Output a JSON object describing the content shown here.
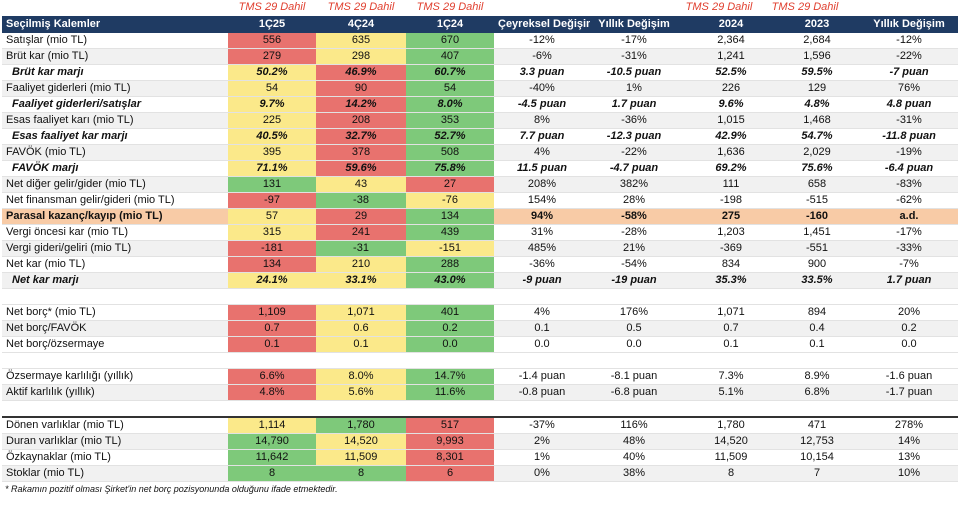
{
  "tms_label": "TMS 29 Dahil",
  "header": [
    "Seçilmiş Kalemler",
    "1Ç25",
    "4Ç24",
    "1Ç24",
    "Çeyreksel Değişim",
    "Yıllık Değişim",
    "",
    "2024",
    "2023",
    "Yıllık Değişim"
  ],
  "colors": {
    "header_bg": "#1f3b63",
    "red": "#e8726e",
    "yellow": "#fbe98a",
    "green": "#7ec97a",
    "highlight": "#f8cba6",
    "tms_text": "#e04030"
  },
  "rows": [
    {
      "label": "Satışlar (mio TL)",
      "v": [
        "556",
        "635",
        "670",
        "-12%",
        "-17%",
        "",
        "2,364",
        "2,684",
        "-12%"
      ],
      "c": [
        "r",
        "y",
        "g"
      ]
    },
    {
      "label": "Brüt kar (mio TL)",
      "v": [
        "279",
        "298",
        "407",
        "-6%",
        "-31%",
        "",
        "1,241",
        "1,596",
        "-22%"
      ],
      "c": [
        "r",
        "y",
        "g"
      ]
    },
    {
      "label": "Brüt kar marjı",
      "v": [
        "50.2%",
        "46.9%",
        "60.7%",
        "3.3 puan",
        "-10.5 puan",
        "",
        "52.5%",
        "59.5%",
        "-7 puan"
      ],
      "c": [
        "y",
        "r",
        "g"
      ],
      "ital": true
    },
    {
      "label": "Faaliyet giderleri (mio TL)",
      "v": [
        "54",
        "90",
        "54",
        "-40%",
        "1%",
        "",
        "226",
        "129",
        "76%"
      ],
      "c": [
        "y",
        "r",
        "g"
      ]
    },
    {
      "label": "Faaliyet giderleri/satışlar",
      "v": [
        "9.7%",
        "14.2%",
        "8.0%",
        "-4.5 puan",
        "1.7 puan",
        "",
        "9.6%",
        "4.8%",
        "4.8 puan"
      ],
      "c": [
        "y",
        "r",
        "g"
      ],
      "ital": true
    },
    {
      "label": "Esas faaliyet karı (mio TL)",
      "v": [
        "225",
        "208",
        "353",
        "8%",
        "-36%",
        "",
        "1,015",
        "1,468",
        "-31%"
      ],
      "c": [
        "y",
        "r",
        "g"
      ]
    },
    {
      "label": "Esas faaliyet kar marjı",
      "v": [
        "40.5%",
        "32.7%",
        "52.7%",
        "7.7 puan",
        "-12.3 puan",
        "",
        "42.9%",
        "54.7%",
        "-11.8 puan"
      ],
      "c": [
        "y",
        "r",
        "g"
      ],
      "ital": true
    },
    {
      "label": "FAVÖK (mio TL)",
      "v": [
        "395",
        "378",
        "508",
        "4%",
        "-22%",
        "",
        "1,636",
        "2,029",
        "-19%"
      ],
      "c": [
        "y",
        "r",
        "g"
      ]
    },
    {
      "label": "FAVÖK marjı",
      "v": [
        "71.1%",
        "59.6%",
        "75.8%",
        "11.5 puan",
        "-4.7 puan",
        "",
        "69.2%",
        "75.6%",
        "-6.4 puan"
      ],
      "c": [
        "y",
        "r",
        "g"
      ],
      "ital": true
    },
    {
      "label": "Net diğer gelir/gider (mio TL)",
      "v": [
        "131",
        "43",
        "27",
        "208%",
        "382%",
        "",
        "111",
        "658",
        "-83%"
      ],
      "c": [
        "g",
        "y",
        "r"
      ]
    },
    {
      "label": "Net finansman gelir/gideri (mio TL)",
      "v": [
        "-97",
        "-38",
        "-76",
        "154%",
        "28%",
        "",
        "-198",
        "-515",
        "-62%"
      ],
      "c": [
        "r",
        "g",
        "y"
      ]
    },
    {
      "label": "Parasal kazanç/kayıp (mio TL)",
      "v": [
        "57",
        "29",
        "134",
        "94%",
        "-58%",
        "",
        "275",
        "-160",
        "a.d."
      ],
      "c": [
        "y",
        "r",
        "g"
      ],
      "hl": true
    },
    {
      "label": "Vergi öncesi kar (mio TL)",
      "v": [
        "315",
        "241",
        "439",
        "31%",
        "-28%",
        "",
        "1,203",
        "1,451",
        "-17%"
      ],
      "c": [
        "y",
        "r",
        "g"
      ]
    },
    {
      "label": "Vergi gideri/geliri (mio TL)",
      "v": [
        "-181",
        "-31",
        "-151",
        "485%",
        "21%",
        "",
        "-369",
        "-551",
        "-33%"
      ],
      "c": [
        "r",
        "g",
        "y"
      ]
    },
    {
      "label": "Net kar (mio TL)",
      "v": [
        "134",
        "210",
        "288",
        "-36%",
        "-54%",
        "",
        "834",
        "900",
        "-7%"
      ],
      "c": [
        "r",
        "y",
        "g"
      ]
    },
    {
      "label": "Net kar marjı",
      "v": [
        "24.1%",
        "33.1%",
        "43.0%",
        "-9 puan",
        "-19 puan",
        "",
        "35.3%",
        "33.5%",
        "1.7 puan"
      ],
      "c": [
        "y",
        "y",
        "g"
      ],
      "ital": true
    }
  ],
  "rows2": [
    {
      "label": "Net borç* (mio TL)",
      "v": [
        "1,109",
        "1,071",
        "401",
        "4%",
        "176%",
        "",
        "1,071",
        "894",
        "20%"
      ],
      "c": [
        "r",
        "y",
        "g"
      ]
    },
    {
      "label": "Net borç/FAVÖK",
      "v": [
        "0.7",
        "0.6",
        "0.2",
        "0.1",
        "0.5",
        "",
        "0.7",
        "0.4",
        "0.2"
      ],
      "c": [
        "r",
        "y",
        "g"
      ]
    },
    {
      "label": "Net borç/özsermaye",
      "v": [
        "0.1",
        "0.1",
        "0.0",
        "0.0",
        "0.0",
        "",
        "0.1",
        "0.1",
        "0.0"
      ],
      "c": [
        "r",
        "y",
        "g"
      ]
    }
  ],
  "rows3": [
    {
      "label": "Özsermaye karlılığı (yıllık)",
      "v": [
        "6.6%",
        "8.0%",
        "14.7%",
        "-1.4 puan",
        "-8.1 puan",
        "",
        "7.3%",
        "8.9%",
        "-1.6 puan"
      ],
      "c": [
        "r",
        "y",
        "g"
      ]
    },
    {
      "label": "Aktif karlılık (yıllık)",
      "v": [
        "4.8%",
        "5.6%",
        "11.6%",
        "-0.8 puan",
        "-6.8 puan",
        "",
        "5.1%",
        "6.8%",
        "-1.7 puan"
      ],
      "c": [
        "r",
        "y",
        "g"
      ]
    }
  ],
  "rows4": [
    {
      "label": "Dönen varlıklar (mio TL)",
      "v": [
        "1,114",
        "1,780",
        "517",
        "-37%",
        "116%",
        "",
        "1,780",
        "471",
        "278%"
      ],
      "c": [
        "y",
        "g",
        "r"
      ]
    },
    {
      "label": "Duran varlıklar (mio TL)",
      "v": [
        "14,790",
        "14,520",
        "9,993",
        "2%",
        "48%",
        "",
        "14,520",
        "12,753",
        "14%"
      ],
      "c": [
        "g",
        "y",
        "r"
      ]
    },
    {
      "label": "Özkaynaklar (mio TL)",
      "v": [
        "11,642",
        "11,509",
        "8,301",
        "1%",
        "40%",
        "",
        "11,509",
        "10,154",
        "13%"
      ],
      "c": [
        "g",
        "y",
        "r"
      ]
    },
    {
      "label": "Stoklar (mio TL)",
      "v": [
        "8",
        "8",
        "6",
        "0%",
        "38%",
        "",
        "8",
        "7",
        "10%"
      ],
      "c": [
        "g",
        "g",
        "r"
      ]
    }
  ],
  "footnote": "* Rakamın pozitif olması Şirket'in net borç pozisyonunda olduğunu ifade etmektedir."
}
